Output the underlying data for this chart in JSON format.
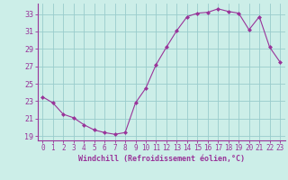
{
  "x": [
    0,
    1,
    2,
    3,
    4,
    5,
    6,
    7,
    8,
    9,
    10,
    11,
    12,
    13,
    14,
    15,
    16,
    17,
    18,
    19,
    20,
    21,
    22,
    23
  ],
  "y": [
    23.5,
    22.8,
    21.5,
    21.1,
    20.3,
    19.7,
    19.4,
    19.2,
    19.4,
    22.8,
    24.5,
    27.2,
    29.2,
    31.1,
    32.7,
    33.1,
    33.2,
    33.6,
    33.3,
    33.1,
    31.2,
    32.7,
    29.2,
    27.5
  ],
  "line_color": "#993399",
  "marker": "D",
  "marker_size": 2.0,
  "bg_color": "#cceee8",
  "grid_color": "#99cccc",
  "xlabel": "Windchill (Refroidissement éolien,°C)",
  "xlabel_color": "#993399",
  "tick_color": "#993399",
  "ylim": [
    18.5,
    34.2
  ],
  "xlim": [
    -0.5,
    23.5
  ],
  "yticks": [
    19,
    21,
    23,
    25,
    27,
    29,
    31,
    33
  ],
  "xticks": [
    0,
    1,
    2,
    3,
    4,
    5,
    6,
    7,
    8,
    9,
    10,
    11,
    12,
    13,
    14,
    15,
    16,
    17,
    18,
    19,
    20,
    21,
    22,
    23
  ],
  "spine_color": "#993399",
  "tick_fontsize": 5.5,
  "xlabel_fontsize": 6.0
}
